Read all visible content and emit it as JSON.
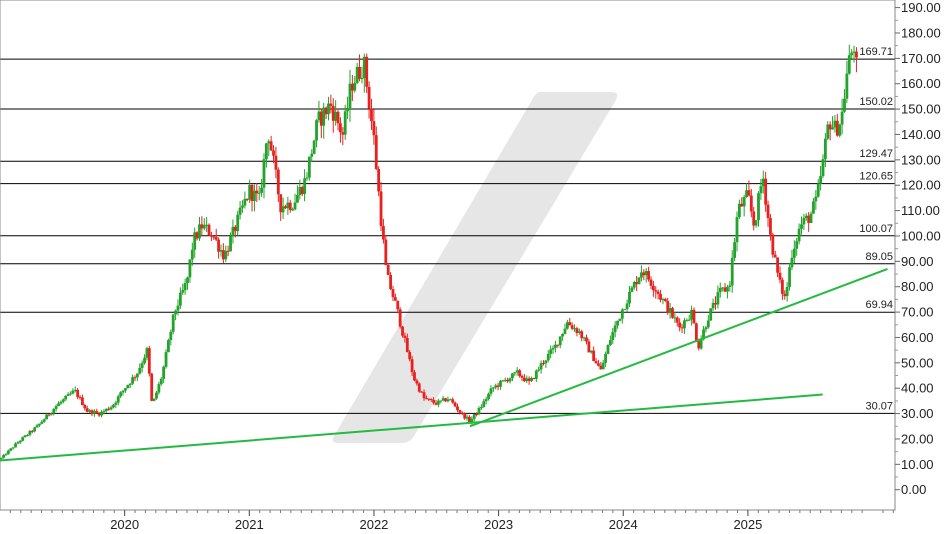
{
  "chart_data": {
    "type": "candlestick",
    "title": "",
    "xlabel": "",
    "ylabel": "",
    "ylim": [
      -8,
      193
    ],
    "y_ticks": [
      "190.00",
      "180.00",
      "170.00",
      "160.00",
      "150.00",
      "140.00",
      "130.00",
      "120.00",
      "110.00",
      "100.00",
      "90.00",
      "80.00",
      "70.00",
      "60.00",
      "50.00",
      "40.00",
      "30.00",
      "20.00",
      "10.00",
      "0.00"
    ],
    "x_ticks": [
      "2020",
      "2021",
      "2022",
      "2023",
      "2024",
      "2025"
    ],
    "x_tick_times": [
      2020.0,
      2021.0,
      2022.0,
      2023.0,
      2024.0,
      2025.0
    ],
    "xlim": [
      2019.0,
      2026.18
    ],
    "horizontal_levels": [
      {
        "value": 169.71,
        "label": "169.71"
      },
      {
        "value": 150.02,
        "label": "150.02"
      },
      {
        "value": 129.47,
        "label": "129.47"
      },
      {
        "value": 120.65,
        "label": "120.65"
      },
      {
        "value": 100.07,
        "label": "100.07"
      },
      {
        "value": 89.05,
        "label": "89.05"
      },
      {
        "value": 69.94,
        "label": "69.94"
      },
      {
        "value": 30.07,
        "label": "30.07"
      }
    ],
    "trendlines": [
      {
        "x1": 2019.0,
        "y1": 11.5,
        "x2": 2025.6,
        "y2": 37.5
      },
      {
        "x1": 2022.77,
        "y1": 25.0,
        "x2": 2026.12,
        "y2": 87.0
      }
    ],
    "price_path": [
      [
        2019.0,
        12
      ],
      [
        2019.15,
        19
      ],
      [
        2019.3,
        25
      ],
      [
        2019.45,
        33
      ],
      [
        2019.6,
        39
      ],
      [
        2019.7,
        31
      ],
      [
        2019.8,
        30
      ],
      [
        2019.9,
        33
      ],
      [
        2020.0,
        40
      ],
      [
        2020.1,
        46
      ],
      [
        2020.18,
        55
      ],
      [
        2020.22,
        33
      ],
      [
        2020.3,
        45
      ],
      [
        2020.4,
        70
      ],
      [
        2020.45,
        76
      ],
      [
        2020.5,
        82
      ],
      [
        2020.55,
        98
      ],
      [
        2020.62,
        104
      ],
      [
        2020.7,
        101
      ],
      [
        2020.8,
        92
      ],
      [
        2020.9,
        105
      ],
      [
        2021.0,
        118
      ],
      [
        2021.08,
        114
      ],
      [
        2021.15,
        142
      ],
      [
        2021.25,
        112
      ],
      [
        2021.35,
        113
      ],
      [
        2021.45,
        122
      ],
      [
        2021.55,
        145
      ],
      [
        2021.65,
        152
      ],
      [
        2021.75,
        140
      ],
      [
        2021.82,
        160
      ],
      [
        2021.92,
        168
      ],
      [
        2022.0,
        138
      ],
      [
        2022.05,
        110
      ],
      [
        2022.1,
        85
      ],
      [
        2022.18,
        72
      ],
      [
        2022.25,
        58
      ],
      [
        2022.32,
        44
      ],
      [
        2022.4,
        36
      ],
      [
        2022.5,
        34
      ],
      [
        2022.6,
        36
      ],
      [
        2022.7,
        30
      ],
      [
        2022.77,
        27
      ],
      [
        2022.85,
        32
      ],
      [
        2022.95,
        40
      ],
      [
        2023.05,
        43
      ],
      [
        2023.15,
        46
      ],
      [
        2023.25,
        42
      ],
      [
        2023.35,
        50
      ],
      [
        2023.45,
        56
      ],
      [
        2023.55,
        66
      ],
      [
        2023.65,
        62
      ],
      [
        2023.75,
        53
      ],
      [
        2023.82,
        47
      ],
      [
        2023.9,
        60
      ],
      [
        2024.0,
        72
      ],
      [
        2024.1,
        82
      ],
      [
        2024.15,
        87
      ],
      [
        2024.25,
        80
      ],
      [
        2024.35,
        72
      ],
      [
        2024.45,
        64
      ],
      [
        2024.55,
        70
      ],
      [
        2024.6,
        56
      ],
      [
        2024.68,
        68
      ],
      [
        2024.78,
        78
      ],
      [
        2024.85,
        80
      ],
      [
        2024.92,
        110
      ],
      [
        2025.0,
        116
      ],
      [
        2025.05,
        104
      ],
      [
        2025.12,
        124
      ],
      [
        2025.18,
        100
      ],
      [
        2025.25,
        82
      ],
      [
        2025.3,
        75
      ],
      [
        2025.35,
        93
      ],
      [
        2025.42,
        104
      ],
      [
        2025.5,
        108
      ],
      [
        2025.55,
        114
      ],
      [
        2025.6,
        128
      ],
      [
        2025.65,
        146
      ],
      [
        2025.7,
        142
      ],
      [
        2025.75,
        146
      ],
      [
        2025.8,
        166
      ],
      [
        2025.85,
        176
      ],
      [
        2025.88,
        162
      ]
    ]
  },
  "colors": {
    "up": "#22a32a",
    "down": "#e8211f",
    "trendline": "#22bb3f",
    "level": "#000000",
    "grid": "#c8c8c8",
    "watermark": "#e6e6e6"
  }
}
